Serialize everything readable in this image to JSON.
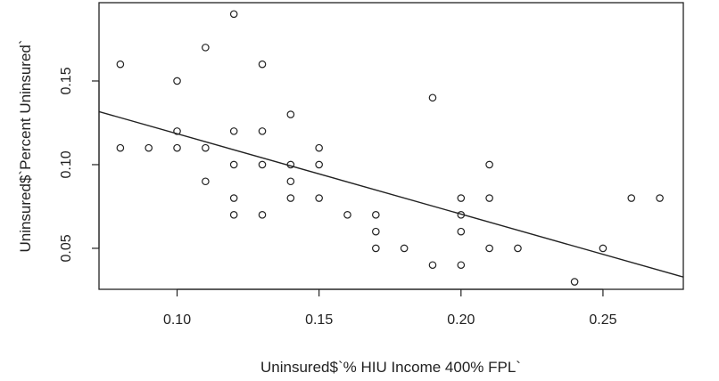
{
  "chart_data": {
    "type": "scatter",
    "title": "",
    "xlabel": "Uninsured$`% HIU Income 400% FPL`",
    "ylabel": "Uninsured$`Percent Uninsured`",
    "xlim": [
      0.0725,
      0.2783
    ],
    "ylim": [
      0.0255,
      0.1968
    ],
    "x_ticks": [
      0.1,
      0.15,
      0.2,
      0.25
    ],
    "x_tick_labels": [
      "0.10",
      "0.15",
      "0.20",
      "0.25"
    ],
    "y_ticks": [
      0.05,
      0.1,
      0.15
    ],
    "y_tick_labels": [
      "0.05",
      "0.10",
      "0.15"
    ],
    "grid": false,
    "legend": "none",
    "series": [
      {
        "marker": "open-circle",
        "color": "#222222",
        "points": [
          [
            0.08,
            0.16
          ],
          [
            0.08,
            0.11
          ],
          [
            0.09,
            0.11
          ],
          [
            0.1,
            0.15
          ],
          [
            0.1,
            0.12
          ],
          [
            0.1,
            0.11
          ],
          [
            0.11,
            0.17
          ],
          [
            0.11,
            0.11
          ],
          [
            0.11,
            0.09
          ],
          [
            0.12,
            0.19
          ],
          [
            0.12,
            0.12
          ],
          [
            0.12,
            0.1
          ],
          [
            0.12,
            0.08
          ],
          [
            0.12,
            0.07
          ],
          [
            0.13,
            0.16
          ],
          [
            0.13,
            0.12
          ],
          [
            0.13,
            0.1
          ],
          [
            0.13,
            0.07
          ],
          [
            0.14,
            0.13
          ],
          [
            0.14,
            0.1
          ],
          [
            0.14,
            0.09
          ],
          [
            0.14,
            0.08
          ],
          [
            0.15,
            0.11
          ],
          [
            0.15,
            0.1
          ],
          [
            0.15,
            0.08
          ],
          [
            0.16,
            0.07
          ],
          [
            0.17,
            0.07
          ],
          [
            0.17,
            0.06
          ],
          [
            0.17,
            0.05
          ],
          [
            0.18,
            0.05
          ],
          [
            0.19,
            0.14
          ],
          [
            0.19,
            0.04
          ],
          [
            0.2,
            0.08
          ],
          [
            0.2,
            0.07
          ],
          [
            0.2,
            0.06
          ],
          [
            0.2,
            0.04
          ],
          [
            0.21,
            0.1
          ],
          [
            0.21,
            0.08
          ],
          [
            0.21,
            0.05
          ],
          [
            0.22,
            0.05
          ],
          [
            0.24,
            0.03
          ],
          [
            0.25,
            0.05
          ],
          [
            0.26,
            0.08
          ],
          [
            0.27,
            0.08
          ]
        ]
      }
    ],
    "regression_line": {
      "color": "#222222",
      "intercept": 0.1665,
      "slope": -0.4803
    }
  }
}
